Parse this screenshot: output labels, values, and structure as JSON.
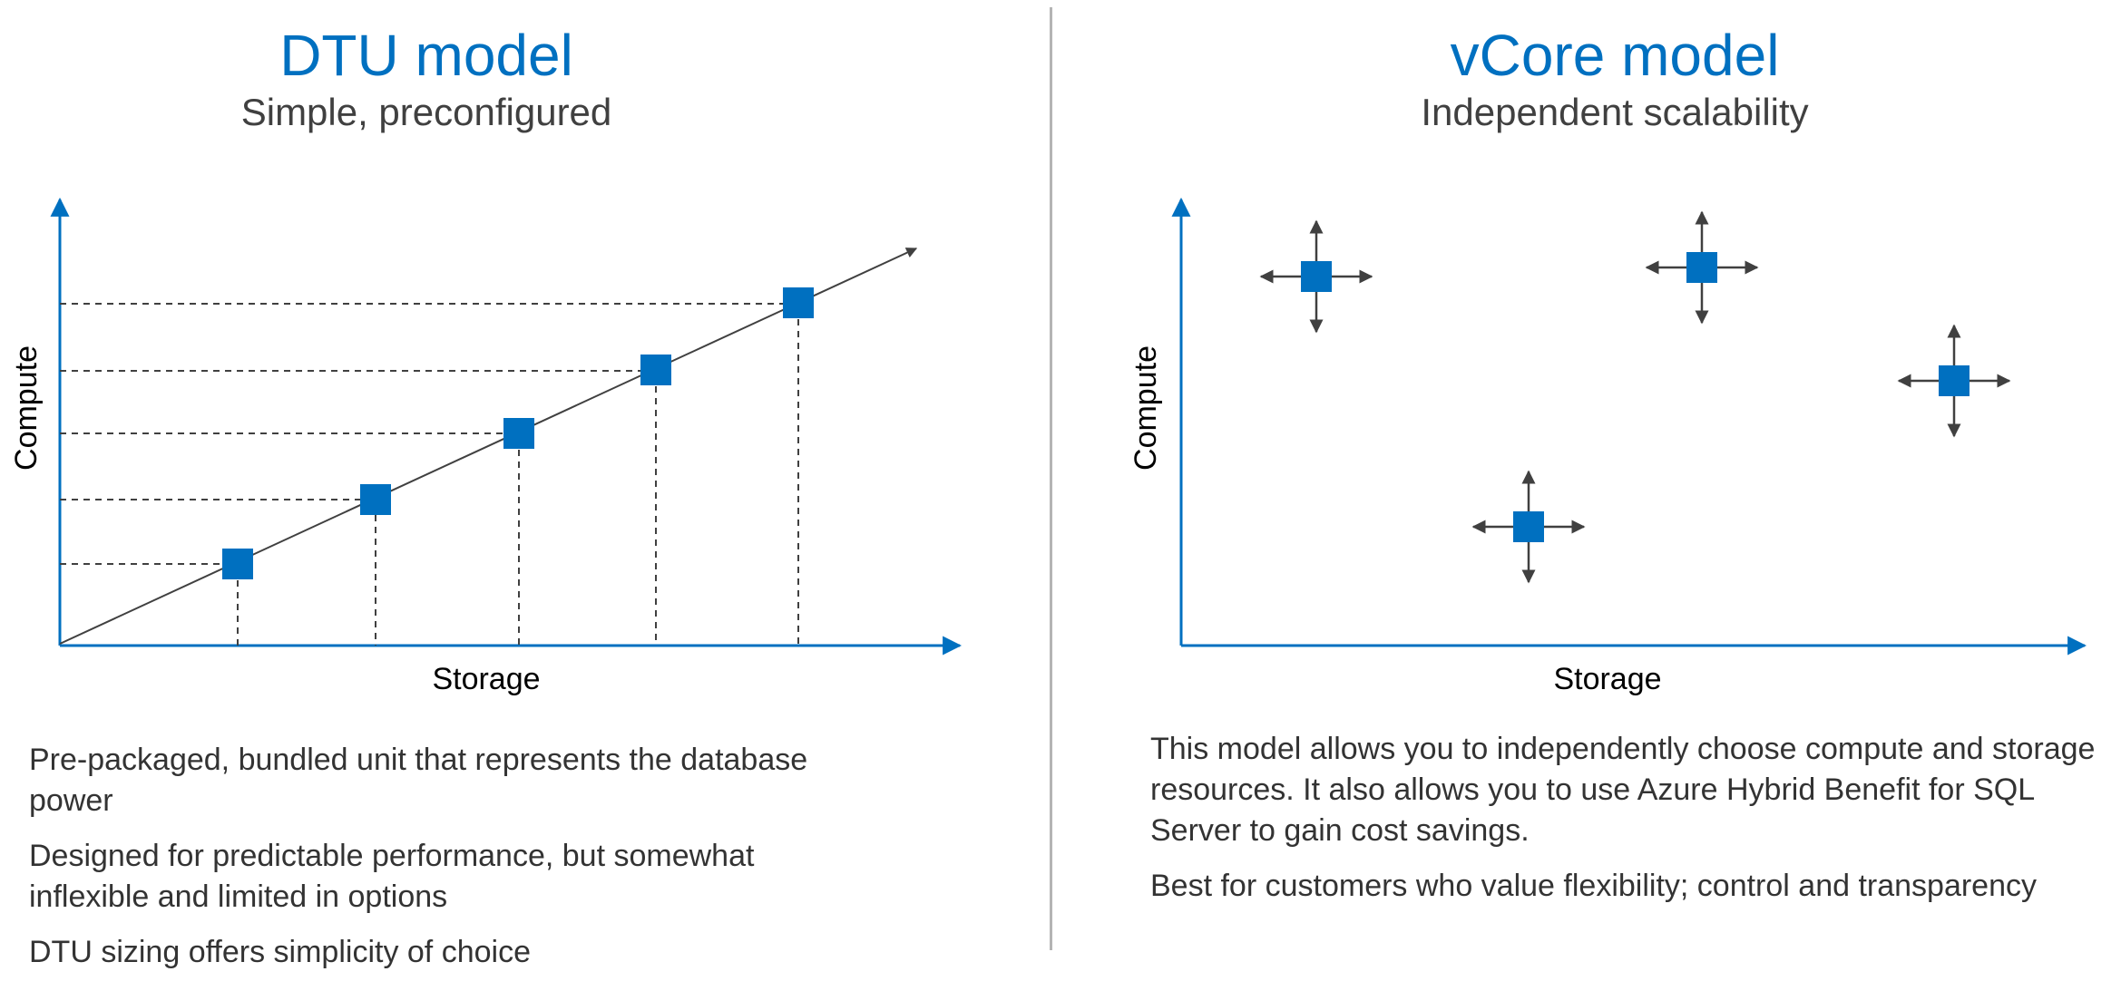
{
  "colors": {
    "accent": "#0070C0",
    "axis": "#0070C0",
    "square": "#0070C0",
    "line": "#404040",
    "divider": "#B4B4B4"
  },
  "left": {
    "title": "DTU model",
    "subtitle": "Simple, preconfigured",
    "y_axis_label": "Compute",
    "x_axis_label": "Storage",
    "bullets": [
      "Pre-packaged, bundled unit that represents the database power",
      "Designed for predictable performance, but somewhat inflexible and limited in options",
      "DTU sizing offers simplicity of choice"
    ]
  },
  "right": {
    "title": "vCore model",
    "subtitle": "Independent scalability",
    "y_axis_label": "Compute",
    "x_axis_label": "Storage",
    "bullets": [
      "This model allows you to independently choose compute and storage resources. It also allows you to use Azure Hybrid Benefit for SQL Server to gain cost savings.",
      "Best for customers who value flexibility; control and transparency"
    ]
  }
}
